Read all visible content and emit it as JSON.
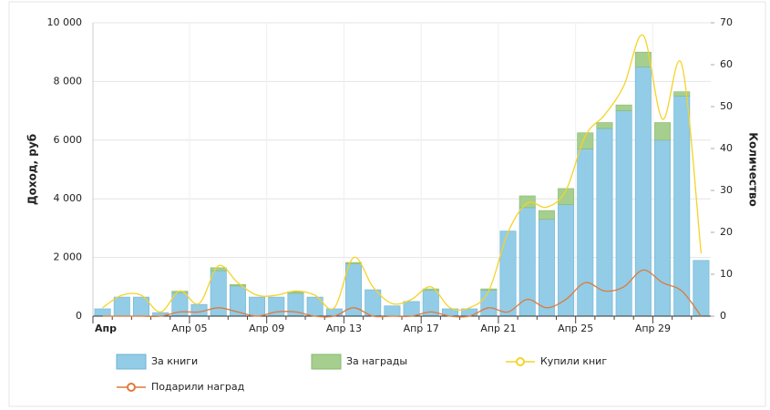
{
  "chart_data": {
    "type": "stacked-bar-line",
    "ylabel": "Доход, руб",
    "y2label": "Количество",
    "categories": [
      "Апр",
      null,
      null,
      null,
      null,
      "Апр 05",
      null,
      null,
      null,
      "Апр 09",
      null,
      null,
      null,
      "Апр 13",
      null,
      null,
      null,
      "Апр 17",
      null,
      null,
      null,
      "Апр 21",
      null,
      null,
      null,
      "Апр 25",
      null,
      null,
      null,
      "Апр 29",
      null,
      null
    ],
    "series": [
      {
        "name": "За книги",
        "kind": "bar",
        "color": "#92cce6",
        "values": [
          250,
          650,
          650,
          120,
          800,
          400,
          1550,
          1030,
          650,
          650,
          780,
          650,
          250,
          1780,
          900,
          350,
          500,
          880,
          250,
          250,
          880,
          2900,
          3700,
          3300,
          3800,
          5700,
          6400,
          7000,
          8500,
          6000,
          7500,
          1900
        ]
      },
      {
        "name": "За награды",
        "kind": "bar",
        "color": "#a6cf8f",
        "values": [
          0,
          0,
          0,
          0,
          50,
          0,
          100,
          50,
          0,
          0,
          50,
          0,
          0,
          50,
          0,
          0,
          0,
          50,
          0,
          0,
          50,
          0,
          400,
          300,
          550,
          550,
          200,
          200,
          500,
          600,
          150,
          0
        ]
      },
      {
        "name": "Купили книг",
        "kind": "line",
        "axis": "y2",
        "color": "#f5d327",
        "values": [
          2,
          5,
          5,
          1,
          6,
          3,
          12,
          8,
          5,
          5,
          6,
          5,
          2,
          14,
          7,
          3,
          4,
          7,
          2,
          2,
          6,
          20,
          27,
          26,
          30,
          43,
          48,
          55,
          67,
          47,
          60,
          15
        ]
      },
      {
        "name": "Подарили наград",
        "kind": "line",
        "axis": "y2",
        "color": "#e0793a",
        "values": [
          0,
          0,
          0,
          0,
          1,
          1,
          2,
          1,
          0,
          1,
          1,
          0,
          0,
          2,
          0,
          0,
          0,
          1,
          0,
          0,
          2,
          1,
          4,
          2,
          4,
          8,
          6,
          7,
          11,
          8,
          6,
          0
        ]
      }
    ],
    "ylim": [
      0,
      10000
    ],
    "yticks": [
      0,
      {
        "value": 2000,
        "label": "2 000"
      },
      {
        "value": 4000,
        "label": "4 000"
      },
      {
        "value": 6000,
        "label": "6 000"
      },
      {
        "value": 8000,
        "label": "8 000"
      },
      {
        "value": 10000,
        "label": "10 000"
      }
    ],
    "y2lim": [
      0,
      70
    ],
    "y2ticks": [
      0,
      10,
      20,
      30,
      40,
      50,
      60,
      70
    ],
    "grid": true,
    "legend": "bottom"
  }
}
